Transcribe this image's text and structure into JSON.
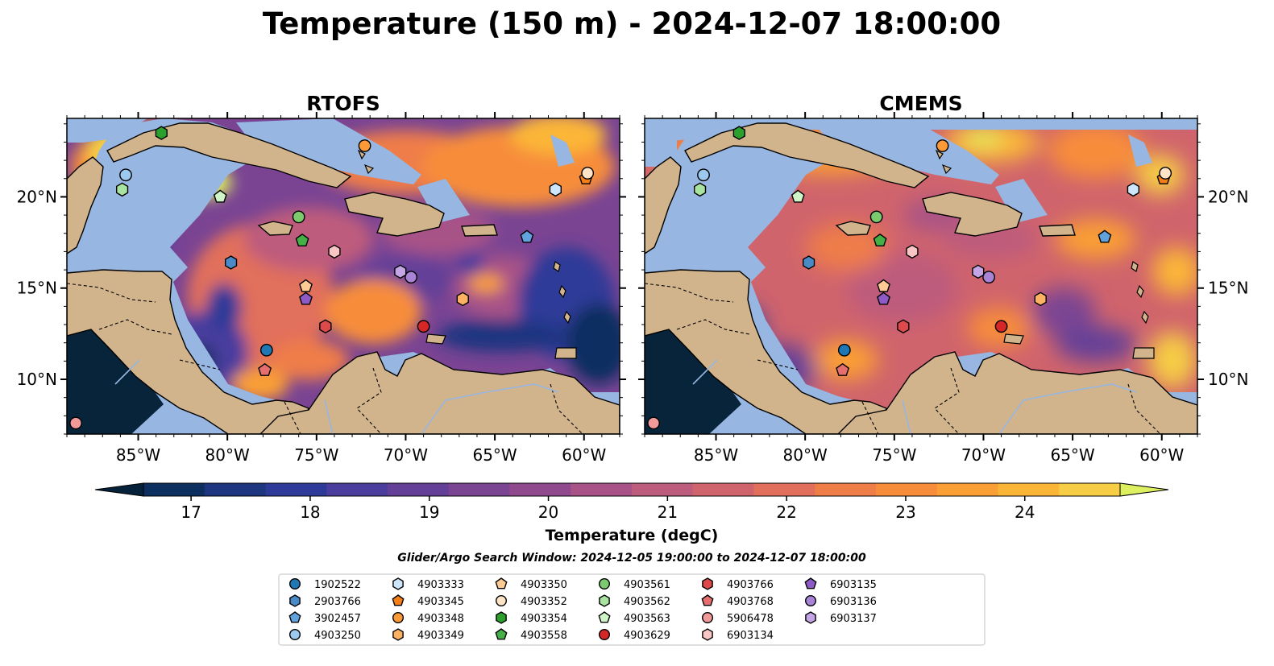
{
  "title": "Temperature (150 m) - 2024-12-07 18:00:00",
  "panels": [
    {
      "title": "RTOFS"
    },
    {
      "title": "CMEMS"
    }
  ],
  "map": {
    "lon_range": [
      -89.0,
      -58.0
    ],
    "lat_range": [
      7.0,
      24.3
    ],
    "x_ticks": [
      -85,
      -80,
      -75,
      -70,
      -65,
      -60
    ],
    "x_tick_labels": [
      "85°W",
      "80°W",
      "75°W",
      "70°W",
      "65°W",
      "60°W"
    ],
    "y_ticks": [
      10,
      15,
      20
    ],
    "y_tick_labels": [
      "10°N",
      "15°N",
      "20°N"
    ],
    "land_color": "#d2b48c",
    "shelf_color": "#97b6e1",
    "deep_color": "#07243a"
  },
  "colorbar": {
    "label": "Temperature (degC)",
    "min": 16.6,
    "max": 24.8,
    "ticks": [
      17,
      18,
      19,
      20,
      21,
      22,
      23,
      24
    ],
    "tick_labels": [
      "17",
      "18",
      "19",
      "20",
      "21",
      "22",
      "23",
      "24"
    ],
    "colors": [
      "#05223a",
      "#0d2f60",
      "#1e3580",
      "#2e3a98",
      "#4a3d9e",
      "#643f98",
      "#7a4493",
      "#91498e",
      "#a85287",
      "#be5c7d",
      "#d0646c",
      "#e16f5c",
      "#ef7d48",
      "#f78d3b",
      "#fa9f35",
      "#fbb637",
      "#f6cd44",
      "#dcf060"
    ]
  },
  "search_window": "Glider/Argo Search Window: 2024-12-05 19:00:00 to 2024-12-07 18:00:00",
  "floats": [
    {
      "id": "1902522",
      "marker": "circle",
      "color": "#1f77b4",
      "lon": -77.8,
      "lat": 11.6
    },
    {
      "id": "2903766",
      "marker": "hexagon",
      "color": "#4a8ac7",
      "lon": -79.8,
      "lat": 16.4
    },
    {
      "id": "3902457",
      "marker": "pentagon",
      "color": "#62a3de",
      "lon": -63.2,
      "lat": 17.8
    },
    {
      "id": "4903250",
      "marker": "circle",
      "color": "#9cc9f0",
      "lon": -85.7,
      "lat": 21.2
    },
    {
      "id": "4903333",
      "marker": "hexagon",
      "color": "#cde6fb",
      "lon": -61.6,
      "lat": 20.4
    },
    {
      "id": "4903345",
      "marker": "pentagon",
      "color": "#f57f17",
      "lon": -59.9,
      "lat": 21.0
    },
    {
      "id": "4903348",
      "marker": "circle",
      "color": "#fb9a36",
      "lon": -72.3,
      "lat": 22.8
    },
    {
      "id": "4903349",
      "marker": "hexagon",
      "color": "#fdb163",
      "lon": -66.8,
      "lat": 14.4
    },
    {
      "id": "4903350",
      "marker": "pentagon",
      "color": "#fdcb93",
      "lon": -75.6,
      "lat": 15.1
    },
    {
      "id": "4903352",
      "marker": "circle",
      "color": "#ffe4c7",
      "lon": -59.8,
      "lat": 21.3
    },
    {
      "id": "4903354",
      "marker": "hexagon",
      "color": "#2ca02c",
      "lon": -83.7,
      "lat": 23.5
    },
    {
      "id": "4903558",
      "marker": "pentagon",
      "color": "#45b045",
      "lon": -75.8,
      "lat": 17.6
    },
    {
      "id": "4903561",
      "marker": "circle",
      "color": "#7bcb6e",
      "lon": -76.0,
      "lat": 18.9
    },
    {
      "id": "4903562",
      "marker": "hexagon",
      "color": "#a8e3a0",
      "lon": -85.9,
      "lat": 20.4
    },
    {
      "id": "4903563",
      "marker": "pentagon",
      "color": "#d0f5c8",
      "lon": -80.4,
      "lat": 20.0
    },
    {
      "id": "4903629",
      "marker": "circle",
      "color": "#d62728",
      "lon": -69.0,
      "lat": 12.9
    },
    {
      "id": "4903766",
      "marker": "hexagon",
      "color": "#de4a4b",
      "lon": -74.5,
      "lat": 12.9
    },
    {
      "id": "4903768",
      "marker": "pentagon",
      "color": "#e66e6e",
      "lon": -77.9,
      "lat": 10.5
    },
    {
      "id": "5906478",
      "marker": "circle",
      "color": "#f09a9a",
      "lon": -88.5,
      "lat": 7.6
    },
    {
      "id": "6903134",
      "marker": "hexagon",
      "color": "#f9c6c5",
      "lon": -74.0,
      "lat": 17.0
    },
    {
      "id": "6903135",
      "marker": "pentagon",
      "color": "#8e5bc6",
      "lon": -75.6,
      "lat": 14.4
    },
    {
      "id": "6903136",
      "marker": "circle",
      "color": "#a983d6",
      "lon": -69.7,
      "lat": 15.6
    },
    {
      "id": "6903137",
      "marker": "hexagon",
      "color": "#c4a6e6",
      "lon": -70.3,
      "lat": 15.9
    }
  ]
}
